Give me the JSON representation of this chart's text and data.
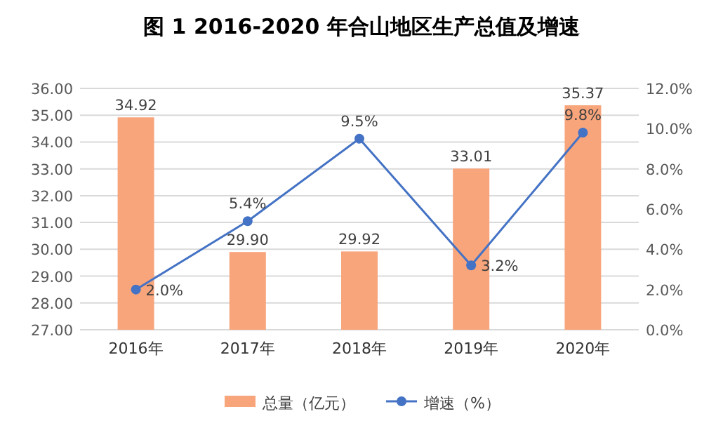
{
  "chart_data": {
    "type": "bar",
    "title": "图 1 2016-2020 年合山地区生产总值及增速",
    "categories": [
      "2016年",
      "2017年",
      "2018年",
      "2019年",
      "2020年"
    ],
    "series": [
      {
        "name": "总量（亿元）",
        "color": "#f8a57c",
        "values": [
          34.92,
          29.9,
          29.92,
          33.01,
          35.37
        ],
        "value_labels": [
          "34.92",
          "29.90",
          "29.92",
          "33.01",
          "35.37"
        ]
      },
      {
        "name": "增速（%）",
        "type": "line",
        "axis": "y2",
        "color": "#4472c4",
        "values": [
          2.0,
          5.4,
          9.5,
          3.2,
          9.8
        ],
        "value_labels": [
          "2.0%",
          "5.4%",
          "9.5%",
          "3.2%",
          "9.8%"
        ]
      }
    ],
    "ylim": [
      27,
      36
    ],
    "yticks": [
      {
        "value": 27,
        "label": "27.00"
      },
      {
        "value": 28,
        "label": "28.00"
      },
      {
        "value": 29,
        "label": "29.00"
      },
      {
        "value": 30,
        "label": "30.00"
      },
      {
        "value": 31,
        "label": "31.00"
      },
      {
        "value": 32,
        "label": "32.00"
      },
      {
        "value": 33,
        "label": "33.00"
      },
      {
        "value": 34,
        "label": "34.00"
      },
      {
        "value": 35,
        "label": "35.00"
      },
      {
        "value": 36,
        "label": "36.00"
      }
    ],
    "y2lim": [
      0,
      12
    ],
    "y2ticks": [
      {
        "value": 0,
        "label": "0.0%"
      },
      {
        "value": 2,
        "label": "2.0%"
      },
      {
        "value": 4,
        "label": "4.0%"
      },
      {
        "value": 6,
        "label": "6.0%"
      },
      {
        "value": 8,
        "label": "8.0%"
      },
      {
        "value": 10,
        "label": "10.0%"
      },
      {
        "value": 12,
        "label": "12.0%"
      }
    ],
    "grid": "y",
    "legend": "bottom",
    "marker": "circle",
    "line_style": "solid"
  }
}
